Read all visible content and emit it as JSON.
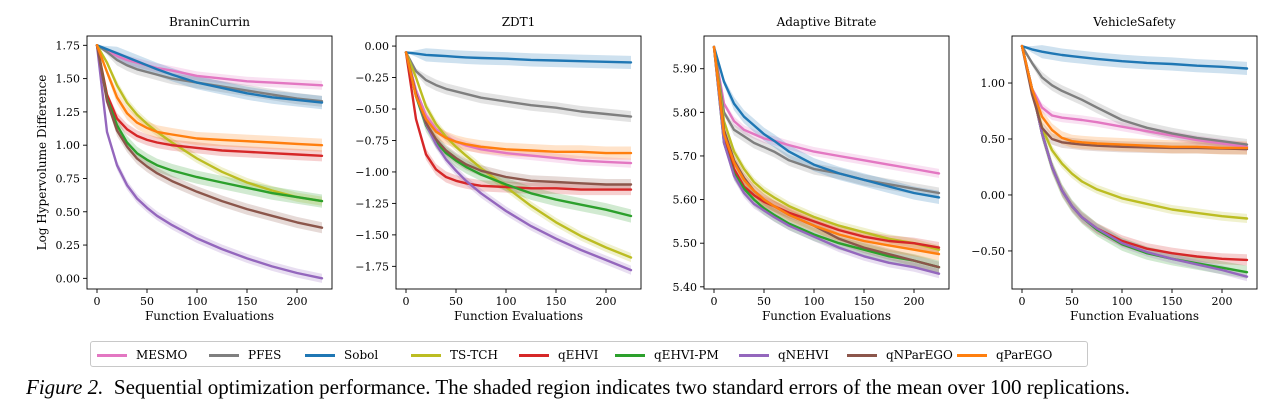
{
  "chart_data": [
    {
      "type": "line",
      "title": "BraninCurrin",
      "xlabel": "Function Evaluations",
      "ylabel": "Log Hypervolume Difference",
      "xlim": [
        -10,
        235
      ],
      "ylim": [
        -0.08,
        1.82
      ],
      "xticks": [
        0,
        50,
        100,
        150,
        200
      ],
      "yticks": [
        0.0,
        0.25,
        0.5,
        0.75,
        1.0,
        1.25,
        1.5,
        1.75
      ],
      "ytick_labels": [
        "0.00",
        "0.25",
        "0.50",
        "0.75",
        "1.00",
        "1.25",
        "1.50",
        "1.75"
      ],
      "x": [
        0,
        10,
        20,
        30,
        40,
        50,
        60,
        75,
        100,
        125,
        150,
        175,
        200,
        225
      ],
      "series": [
        {
          "name": "MESMO",
          "values": [
            1.75,
            1.71,
            1.67,
            1.64,
            1.62,
            1.6,
            1.58,
            1.56,
            1.52,
            1.5,
            1.48,
            1.47,
            1.46,
            1.45
          ]
        },
        {
          "name": "PFES",
          "values": [
            1.75,
            1.7,
            1.64,
            1.6,
            1.57,
            1.55,
            1.53,
            1.5,
            1.47,
            1.44,
            1.41,
            1.38,
            1.35,
            1.33
          ]
        },
        {
          "name": "Sobol",
          "values": [
            1.75,
            1.72,
            1.69,
            1.66,
            1.63,
            1.6,
            1.57,
            1.53,
            1.47,
            1.43,
            1.39,
            1.36,
            1.34,
            1.32
          ]
        },
        {
          "name": "TS-TCH",
          "values": [
            1.75,
            1.62,
            1.45,
            1.32,
            1.23,
            1.16,
            1.1,
            1.02,
            0.9,
            0.8,
            0.72,
            0.66,
            0.61,
            0.58
          ]
        },
        {
          "name": "qEHVI",
          "values": [
            1.75,
            1.38,
            1.2,
            1.12,
            1.07,
            1.04,
            1.02,
            1.0,
            0.98,
            0.96,
            0.95,
            0.94,
            0.93,
            0.92
          ]
        },
        {
          "name": "qEHVI-PM",
          "values": [
            1.75,
            1.35,
            1.15,
            1.02,
            0.94,
            0.89,
            0.85,
            0.81,
            0.76,
            0.72,
            0.68,
            0.64,
            0.61,
            0.58
          ]
        },
        {
          "name": "qNEHVI",
          "values": [
            1.75,
            1.1,
            0.85,
            0.7,
            0.6,
            0.53,
            0.47,
            0.4,
            0.3,
            0.22,
            0.15,
            0.09,
            0.04,
            0.0
          ]
        },
        {
          "name": "qNParEGO",
          "values": [
            1.75,
            1.33,
            1.11,
            0.99,
            0.9,
            0.84,
            0.79,
            0.73,
            0.65,
            0.58,
            0.52,
            0.47,
            0.42,
            0.38
          ]
        },
        {
          "name": "qParEGO",
          "values": [
            1.75,
            1.55,
            1.36,
            1.24,
            1.17,
            1.13,
            1.1,
            1.08,
            1.05,
            1.04,
            1.03,
            1.02,
            1.01,
            1.0
          ]
        }
      ]
    },
    {
      "type": "line",
      "title": "ZDT1",
      "xlabel": "Function Evaluations",
      "ylabel": "",
      "xlim": [
        -10,
        235
      ],
      "ylim": [
        -1.93,
        0.08
      ],
      "xticks": [
        0,
        50,
        100,
        150,
        200
      ],
      "yticks": [
        0.0,
        -0.25,
        -0.5,
        -0.75,
        -1.0,
        -1.25,
        -1.5,
        -1.75
      ],
      "ytick_labels": [
        "0.00",
        "−0.25",
        "−0.50",
        "−0.75",
        "−1.00",
        "−1.25",
        "−1.50",
        "−1.75"
      ],
      "x": [
        0,
        10,
        20,
        30,
        40,
        50,
        60,
        75,
        100,
        125,
        150,
        175,
        200,
        225
      ],
      "series": [
        {
          "name": "MESMO",
          "values": [
            -0.05,
            -0.35,
            -0.55,
            -0.66,
            -0.72,
            -0.76,
            -0.79,
            -0.82,
            -0.85,
            -0.87,
            -0.89,
            -0.91,
            -0.92,
            -0.93
          ]
        },
        {
          "name": "PFES",
          "values": [
            -0.05,
            -0.2,
            -0.27,
            -0.31,
            -0.34,
            -0.36,
            -0.38,
            -0.41,
            -0.44,
            -0.47,
            -0.49,
            -0.52,
            -0.54,
            -0.56
          ]
        },
        {
          "name": "Sobol",
          "values": [
            -0.05,
            -0.06,
            -0.07,
            -0.075,
            -0.08,
            -0.085,
            -0.09,
            -0.095,
            -0.1,
            -0.11,
            -0.115,
            -0.12,
            -0.125,
            -0.13
          ]
        },
        {
          "name": "TS-TCH",
          "values": [
            -0.05,
            -0.25,
            -0.48,
            -0.62,
            -0.72,
            -0.8,
            -0.87,
            -0.97,
            -1.12,
            -1.27,
            -1.4,
            -1.51,
            -1.6,
            -1.68
          ]
        },
        {
          "name": "qEHVI",
          "values": [
            -0.05,
            -0.58,
            -0.86,
            -0.98,
            -1.04,
            -1.07,
            -1.09,
            -1.11,
            -1.12,
            -1.13,
            -1.13,
            -1.14,
            -1.14,
            -1.14
          ]
        },
        {
          "name": "qEHVI-PM",
          "values": [
            -0.05,
            -0.4,
            -0.63,
            -0.76,
            -0.85,
            -0.91,
            -0.96,
            -1.02,
            -1.1,
            -1.17,
            -1.22,
            -1.26,
            -1.3,
            -1.35
          ]
        },
        {
          "name": "qNEHVI",
          "values": [
            -0.05,
            -0.38,
            -0.62,
            -0.78,
            -0.9,
            -0.99,
            -1.07,
            -1.17,
            -1.31,
            -1.43,
            -1.53,
            -1.62,
            -1.7,
            -1.78
          ]
        },
        {
          "name": "qNParEGO",
          "values": [
            -0.05,
            -0.38,
            -0.61,
            -0.74,
            -0.83,
            -0.89,
            -0.94,
            -0.99,
            -1.04,
            -1.07,
            -1.08,
            -1.09,
            -1.1,
            -1.1
          ]
        },
        {
          "name": "qParEGO",
          "values": [
            -0.05,
            -0.4,
            -0.58,
            -0.68,
            -0.73,
            -0.76,
            -0.78,
            -0.8,
            -0.82,
            -0.83,
            -0.84,
            -0.84,
            -0.85,
            -0.85
          ]
        }
      ]
    },
    {
      "type": "line",
      "title": "Adaptive Bitrate",
      "xlabel": "Function Evaluations",
      "ylabel": "",
      "xlim": [
        -10,
        235
      ],
      "ylim": [
        5.395,
        5.975
      ],
      "xticks": [
        0,
        50,
        100,
        150,
        200
      ],
      "yticks": [
        5.4,
        5.5,
        5.6,
        5.7,
        5.8,
        5.9
      ],
      "ytick_labels": [
        "5.40",
        "5.50",
        "5.60",
        "5.70",
        "5.80",
        "5.90"
      ],
      "x": [
        0,
        10,
        20,
        30,
        40,
        50,
        60,
        75,
        100,
        125,
        150,
        175,
        200,
        225
      ],
      "series": [
        {
          "name": "MESMO",
          "values": [
            5.95,
            5.82,
            5.78,
            5.76,
            5.75,
            5.74,
            5.735,
            5.725,
            5.71,
            5.7,
            5.69,
            5.68,
            5.67,
            5.66
          ]
        },
        {
          "name": "PFES",
          "values": [
            5.95,
            5.8,
            5.76,
            5.745,
            5.73,
            5.72,
            5.71,
            5.69,
            5.67,
            5.66,
            5.645,
            5.635,
            5.625,
            5.615
          ]
        },
        {
          "name": "Sobol",
          "values": [
            5.95,
            5.87,
            5.82,
            5.79,
            5.77,
            5.75,
            5.735,
            5.71,
            5.68,
            5.66,
            5.645,
            5.63,
            5.615,
            5.605
          ]
        },
        {
          "name": "TS-TCH",
          "values": [
            5.95,
            5.78,
            5.71,
            5.67,
            5.64,
            5.62,
            5.605,
            5.585,
            5.56,
            5.54,
            5.525,
            5.51,
            5.5,
            5.485
          ]
        },
        {
          "name": "qEHVI",
          "values": [
            5.95,
            5.74,
            5.67,
            5.63,
            5.61,
            5.595,
            5.585,
            5.57,
            5.55,
            5.53,
            5.515,
            5.505,
            5.5,
            5.49
          ]
        },
        {
          "name": "qEHVI-PM",
          "values": [
            5.95,
            5.73,
            5.66,
            5.625,
            5.6,
            5.58,
            5.565,
            5.545,
            5.52,
            5.5,
            5.485,
            5.47,
            5.46,
            5.445
          ]
        },
        {
          "name": "qNEHVI",
          "values": [
            5.95,
            5.73,
            5.655,
            5.615,
            5.59,
            5.575,
            5.56,
            5.54,
            5.515,
            5.49,
            5.47,
            5.455,
            5.445,
            5.43
          ]
        },
        {
          "name": "qNParEGO",
          "values": [
            5.95,
            5.76,
            5.69,
            5.65,
            5.62,
            5.6,
            5.585,
            5.565,
            5.54,
            5.51,
            5.49,
            5.475,
            5.46,
            5.445
          ]
        },
        {
          "name": "qParEGO",
          "values": [
            5.95,
            5.75,
            5.685,
            5.645,
            5.62,
            5.6,
            5.585,
            5.565,
            5.54,
            5.52,
            5.505,
            5.495,
            5.485,
            5.475
          ]
        }
      ]
    },
    {
      "type": "line",
      "title": "VehicleSafety",
      "xlabel": "Function Evaluations",
      "ylabel": "",
      "xlim": [
        -10,
        235
      ],
      "ylim": [
        -0.84,
        1.42
      ],
      "xticks": [
        0,
        50,
        100,
        150,
        200
      ],
      "yticks": [
        -0.5,
        0.0,
        0.5,
        1.0
      ],
      "ytick_labels": [
        "−0.50",
        "0.00",
        "0.50",
        "1.00"
      ],
      "x": [
        0,
        10,
        20,
        30,
        40,
        50,
        60,
        75,
        100,
        125,
        150,
        175,
        200,
        225
      ],
      "series": [
        {
          "name": "MESMO",
          "values": [
            1.33,
            0.95,
            0.78,
            0.71,
            0.69,
            0.68,
            0.67,
            0.65,
            0.61,
            0.57,
            0.53,
            0.49,
            0.46,
            0.43
          ]
        },
        {
          "name": "PFES",
          "values": [
            1.33,
            1.18,
            1.05,
            0.98,
            0.93,
            0.89,
            0.85,
            0.78,
            0.67,
            0.6,
            0.55,
            0.51,
            0.48,
            0.45
          ]
        },
        {
          "name": "Sobol",
          "values": [
            1.33,
            1.3,
            1.28,
            1.265,
            1.25,
            1.24,
            1.23,
            1.215,
            1.195,
            1.18,
            1.17,
            1.155,
            1.145,
            1.13
          ]
        },
        {
          "name": "TS-TCH",
          "values": [
            1.33,
            0.95,
            0.6,
            0.4,
            0.28,
            0.19,
            0.12,
            0.05,
            -0.03,
            -0.08,
            -0.13,
            -0.16,
            -0.19,
            -0.21
          ]
        },
        {
          "name": "qEHVI",
          "values": [
            1.33,
            0.95,
            0.55,
            0.25,
            0.04,
            -0.1,
            -0.2,
            -0.3,
            -0.41,
            -0.48,
            -0.52,
            -0.55,
            -0.57,
            -0.58
          ]
        },
        {
          "name": "qEHVI-PM",
          "values": [
            1.33,
            0.95,
            0.55,
            0.25,
            0.04,
            -0.1,
            -0.2,
            -0.31,
            -0.44,
            -0.52,
            -0.57,
            -0.61,
            -0.65,
            -0.69
          ]
        },
        {
          "name": "qNEHVI",
          "values": [
            1.33,
            0.95,
            0.55,
            0.25,
            0.04,
            -0.1,
            -0.2,
            -0.3,
            -0.43,
            -0.51,
            -0.57,
            -0.62,
            -0.67,
            -0.73
          ]
        },
        {
          "name": "qNParEGO",
          "values": [
            1.33,
            0.9,
            0.6,
            0.5,
            0.47,
            0.46,
            0.45,
            0.44,
            0.43,
            0.425,
            0.42,
            0.42,
            0.415,
            0.41
          ]
        },
        {
          "name": "qParEGO",
          "values": [
            1.33,
            0.95,
            0.7,
            0.58,
            0.51,
            0.48,
            0.47,
            0.46,
            0.45,
            0.44,
            0.43,
            0.43,
            0.42,
            0.42
          ]
        }
      ]
    }
  ],
  "legend": [
    {
      "name": "MESMO",
      "color": "#e377c2"
    },
    {
      "name": "PFES",
      "color": "#7f7f7f"
    },
    {
      "name": "Sobol",
      "color": "#1f77b4"
    },
    {
      "name": "TS-TCH",
      "color": "#bcbd22"
    },
    {
      "name": "qEHVI",
      "color": "#d62728"
    },
    {
      "name": "qEHVI-PM",
      "color": "#2ca02c"
    },
    {
      "name": "qNEHVI",
      "color": "#9467bd"
    },
    {
      "name": "qNParEGO",
      "color": "#8c564b"
    },
    {
      "name": "qParEGO",
      "color": "#ff7f0e"
    }
  ],
  "caption": {
    "label": "Figure 2.",
    "text": "Sequential optimization performance. The shaded region indicates two standard errors of the mean over 100 replications."
  }
}
